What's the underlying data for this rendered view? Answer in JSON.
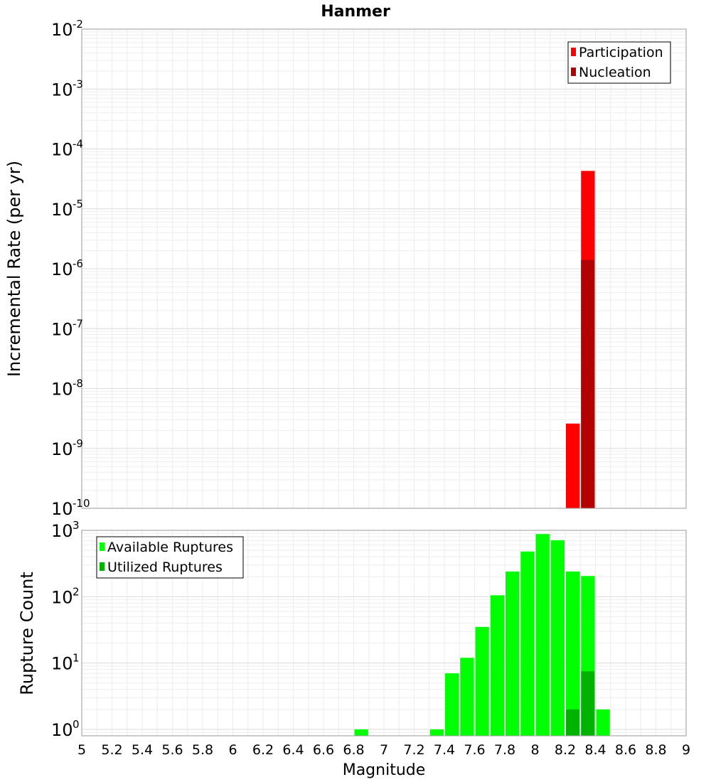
{
  "chart_data": [
    {
      "type": "bar",
      "title": "Hanmer",
      "xlabel": "",
      "ylabel": "Incremental Rate (per yr)",
      "yscale": "log",
      "ylim": [
        1e-10,
        0.01
      ],
      "xlim": [
        5,
        9
      ],
      "bar_width": 0.1,
      "grid": true,
      "legend_position": "top-right",
      "series": [
        {
          "name": "Participation",
          "color": "#ff0000",
          "x": [
            8.25,
            8.35
          ],
          "values": [
            2.6e-09,
            4.3e-05
          ]
        },
        {
          "name": "Nucleation",
          "color": "#b30000",
          "x": [
            8.35
          ],
          "values": [
            1.4e-06
          ]
        }
      ]
    },
    {
      "type": "bar",
      "title": "",
      "xlabel": "Magnitude",
      "ylabel": "Rupture Count",
      "yscale": "log",
      "ylim": [
        0.8,
        1000
      ],
      "xlim": [
        5,
        9
      ],
      "bar_width": 0.1,
      "grid": true,
      "legend_position": "top-left",
      "x_ticks": [
        "5",
        "5.2",
        "5.4",
        "5.6",
        "5.8",
        "6",
        "6.2",
        "6.4",
        "6.6",
        "6.8",
        "7",
        "7.2",
        "7.4",
        "7.6",
        "7.8",
        "8",
        "8.2",
        "8.4",
        "8.6",
        "8.8",
        "9"
      ],
      "series": [
        {
          "name": "Available Ruptures",
          "color": "#00ff00",
          "x": [
            6.85,
            7.35,
            7.45,
            7.55,
            7.65,
            7.75,
            7.85,
            7.95,
            8.05,
            8.15,
            8.25,
            8.35,
            8.45
          ],
          "values": [
            1,
            1,
            7,
            12,
            35,
            105,
            240,
            480,
            880,
            710,
            240,
            205,
            2
          ]
        },
        {
          "name": "Utilized Ruptures",
          "color": "#00b300",
          "x": [
            8.25,
            8.35
          ],
          "values": [
            2,
            7.5
          ]
        }
      ]
    }
  ]
}
